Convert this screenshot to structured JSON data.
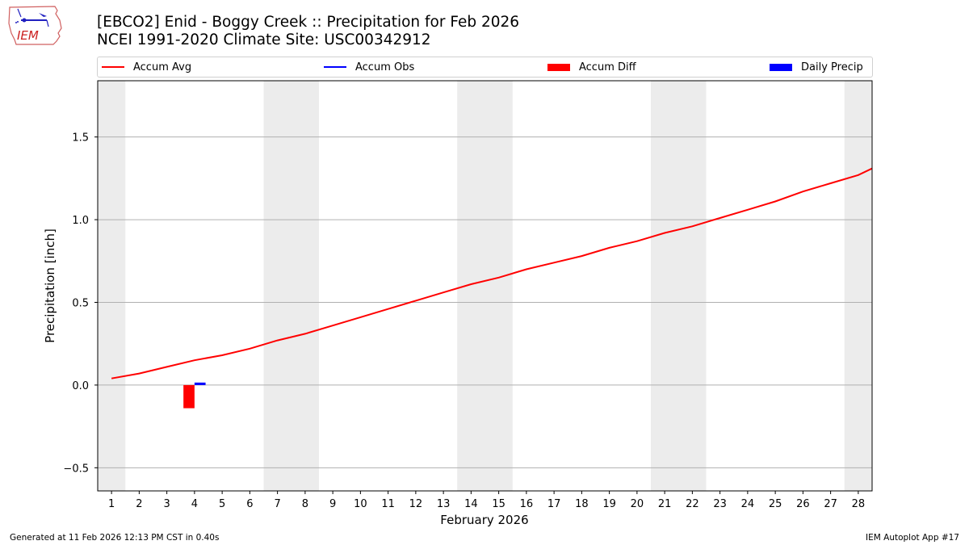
{
  "header": {
    "title_line1": "[EBCO2] Enid - Boggy Creek :: Precipitation for Feb 2026",
    "title_line2": "NCEI 1991-2020 Climate Site: USC00342912",
    "logo_text": "IEM"
  },
  "legend": [
    {
      "label": "Accum Avg",
      "kind": "line",
      "color": "#ff0000"
    },
    {
      "label": "Accum Obs",
      "kind": "line",
      "color": "#0000ff"
    },
    {
      "label": "Accum Diff",
      "kind": "patch",
      "color": "#ff0000"
    },
    {
      "label": "Daily Precip",
      "kind": "patch",
      "color": "#0000ff"
    }
  ],
  "footer": {
    "left": "Generated at 11 Feb 2026 12:13 PM CST in 0.40s",
    "right": "IEM Autoplot App #17"
  },
  "colors": {
    "accum_avg": "#ff0000",
    "accum_obs": "#0000ff",
    "accum_diff": "#ff0000",
    "daily_precip": "#0000ff",
    "weekend_shade": "#ececec",
    "grid": "#b0b0b0"
  },
  "chart_data": {
    "type": "line",
    "title": "[EBCO2] Enid - Boggy Creek :: Precipitation for Feb 2026",
    "subtitle": "NCEI 1991-2020 Climate Site: USC00342912",
    "xlabel": "February 2026",
    "ylabel": "Precipitation [inch]",
    "xlim": [
      0.5,
      28.5
    ],
    "ylim": [
      -0.64,
      1.84
    ],
    "x": [
      1,
      2,
      3,
      4,
      5,
      6,
      7,
      8,
      9,
      10,
      11,
      12,
      13,
      14,
      15,
      16,
      17,
      18,
      19,
      20,
      21,
      22,
      23,
      24,
      25,
      26,
      27,
      28
    ],
    "xticks": [
      "1",
      "2",
      "3",
      "4",
      "5",
      "6",
      "7",
      "8",
      "9",
      "10",
      "11",
      "12",
      "13",
      "14",
      "15",
      "16",
      "17",
      "18",
      "19",
      "20",
      "21",
      "22",
      "23",
      "24",
      "25",
      "26",
      "27",
      "28"
    ],
    "yticks": [
      -0.5,
      0.0,
      0.5,
      1.0,
      1.5
    ],
    "ytick_labels": [
      "−0.5",
      "0.0",
      "0.5",
      "1.0",
      "1.5"
    ],
    "grid": "y",
    "legend_position": "top",
    "weekend_spans": [
      [
        0.5,
        1.5
      ],
      [
        6.5,
        8.5
      ],
      [
        13.5,
        15.5
      ],
      [
        20.5,
        22.5
      ],
      [
        27.5,
        28.5
      ]
    ],
    "series": [
      {
        "name": "Accum Avg",
        "type": "line",
        "x": [
          1,
          2,
          3,
          4,
          5,
          6,
          7,
          8,
          9,
          10,
          11,
          12,
          13,
          14,
          15,
          16,
          17,
          18,
          19,
          20,
          21,
          22,
          23,
          24,
          25,
          26,
          27,
          28,
          29
        ],
        "values": [
          0.04,
          0.07,
          0.11,
          0.15,
          0.18,
          0.22,
          0.27,
          0.31,
          0.36,
          0.41,
          0.46,
          0.51,
          0.56,
          0.61,
          0.65,
          0.7,
          0.74,
          0.78,
          0.83,
          0.87,
          0.92,
          0.96,
          1.01,
          1.06,
          1.11,
          1.17,
          1.22,
          1.27,
          1.35
        ]
      },
      {
        "name": "Accum Obs",
        "type": "line",
        "x": [],
        "values": []
      },
      {
        "name": "Accum Diff",
        "type": "bar",
        "x": [
          4
        ],
        "values": [
          -0.14
        ]
      },
      {
        "name": "Daily Precip",
        "type": "bar",
        "x": [
          4
        ],
        "values": [
          0.015
        ]
      }
    ]
  }
}
